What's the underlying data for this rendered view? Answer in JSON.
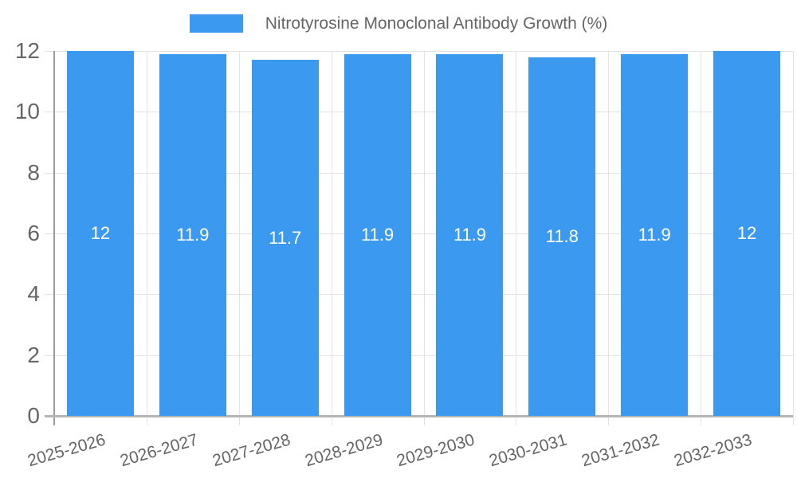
{
  "chart_data": {
    "type": "bar",
    "title": "Nitrotyrosine Monoclonal Antibody Growth (%)",
    "legend_position": "top",
    "xlabel": "",
    "ylabel": "",
    "categories": [
      "2025-2026",
      "2026-2027",
      "2027-2028",
      "2028-2029",
      "2029-2030",
      "2030-2031",
      "2031-2032",
      "2032-2033"
    ],
    "series": [
      {
        "name": "Nitrotyrosine Monoclonal Antibody Growth (%)",
        "values": [
          12,
          11.9,
          11.7,
          11.9,
          11.9,
          11.8,
          11.9,
          12
        ]
      }
    ],
    "value_labels": [
      "12",
      "11.9",
      "11.7",
      "11.9",
      "11.9",
      "11.8",
      "11.9",
      "12"
    ],
    "ylim": [
      0,
      12
    ],
    "yticks": [
      0,
      2,
      4,
      6,
      8,
      10,
      12
    ],
    "grid": true,
    "colors": {
      "bar": "#3b9af0",
      "grid_line": "#e3e3e3",
      "y_axis_line": "#9b9b9b",
      "x_axis_line": "#b6b6b6",
      "tick_label": "#666666",
      "value_label": "#ffffff",
      "background": "#ffffff"
    }
  }
}
